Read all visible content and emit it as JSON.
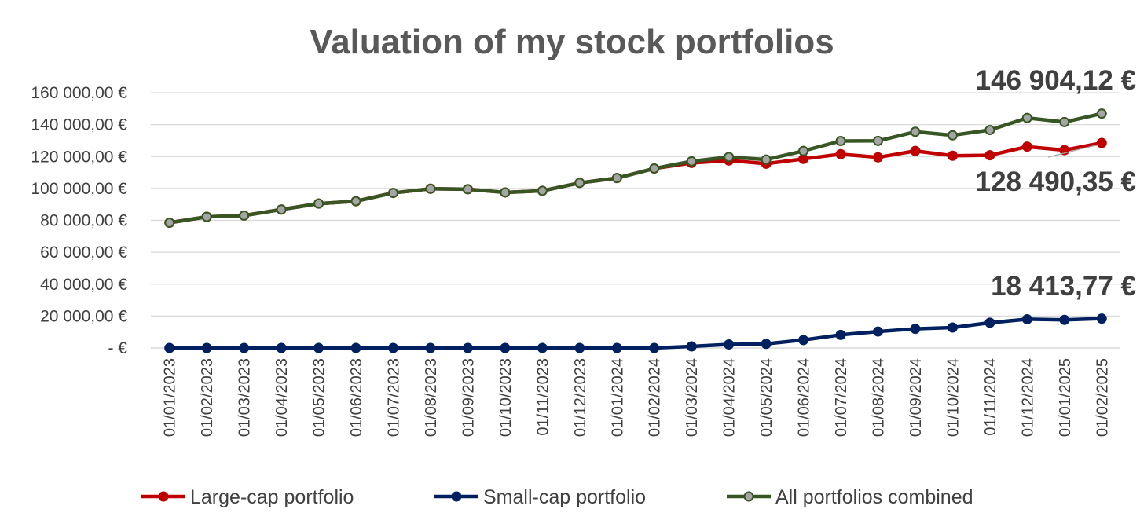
{
  "chart_data": {
    "type": "line",
    "title": "Valuation of my stock portfolios",
    "xlabel": "",
    "ylabel": "",
    "ylim": [
      0,
      160000
    ],
    "grid": true,
    "legend_position": "bottom",
    "categories": [
      "01/01/2023",
      "01/02/2023",
      "01/03/2023",
      "01/04/2023",
      "01/05/2023",
      "01/06/2023",
      "01/07/2023",
      "01/08/2023",
      "01/09/2023",
      "01/10/2023",
      "01/11/2023",
      "01/12/2023",
      "01/01/2024",
      "01/02/2024",
      "01/03/2024",
      "01/04/2024",
      "01/05/2024",
      "01/06/2024",
      "01/07/2024",
      "01/08/2024",
      "01/09/2024",
      "01/10/2024",
      "01/11/2024",
      "01/12/2024",
      "01/01/2025",
      "01/02/2025"
    ],
    "y_tick_labels": [
      {
        "value": 0,
        "label": "-  €"
      },
      {
        "value": 20000,
        "label": "20 000,00 €"
      },
      {
        "value": 40000,
        "label": "40 000,00 €"
      },
      {
        "value": 60000,
        "label": "60 000,00 €"
      },
      {
        "value": 80000,
        "label": "80 000,00 €"
      },
      {
        "value": 100000,
        "label": "100 000,00 €"
      },
      {
        "value": 120000,
        "label": "120 000,00 €"
      },
      {
        "value": 140000,
        "label": "140 000,00 €"
      },
      {
        "value": 160000,
        "label": "160 000,00 €"
      }
    ],
    "series": [
      {
        "name": "Large-cap portfolio",
        "color": "#c00000",
        "marker_fill": "#c00000",
        "values": [
          78500,
          82200,
          83000,
          86800,
          90500,
          92000,
          97200,
          99800,
          99500,
          97500,
          98500,
          103500,
          106500,
          112500,
          116000,
          117500,
          115500,
          118500,
          121500,
          119500,
          123500,
          120500,
          120800,
          126200,
          124000,
          128490.35
        ]
      },
      {
        "name": "Small-cap portfolio",
        "color": "#002060",
        "marker_fill": "#002060",
        "values": [
          0,
          0,
          0,
          0,
          0,
          0,
          0,
          0,
          0,
          0,
          0,
          0,
          0,
          0,
          1000,
          2200,
          2600,
          5000,
          8200,
          10300,
          12000,
          12800,
          15800,
          18000,
          17600,
          18413.77
        ]
      },
      {
        "name": "All portfolios combined",
        "color": "#375623",
        "marker_fill": "#a5a5a5",
        "values": [
          78500,
          82200,
          83000,
          86800,
          90500,
          92000,
          97200,
          99800,
          99500,
          97500,
          98500,
          103500,
          106500,
          112500,
          117000,
          119700,
          118100,
          123500,
          129700,
          129800,
          135500,
          133300,
          136600,
          144200,
          141600,
          146904.12
        ]
      }
    ],
    "annotations": [
      {
        "text": "146 904,12 €",
        "series": 2
      },
      {
        "text": "128 490,35 €",
        "series": 0
      },
      {
        "text": "18 413,77 €",
        "series": 1
      }
    ]
  }
}
